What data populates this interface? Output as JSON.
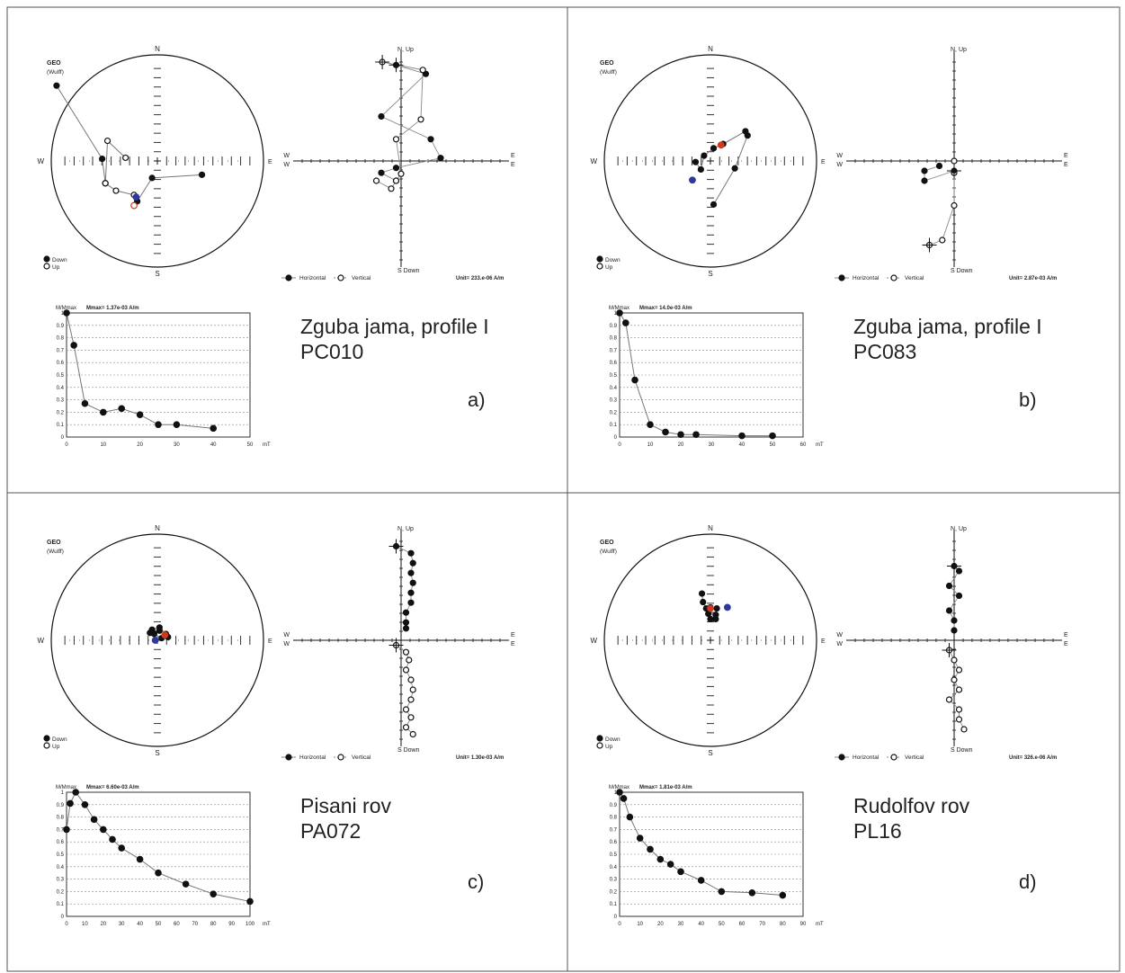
{
  "labels": {
    "geo": "GEO",
    "wulff": "(Wulff)",
    "north": "N",
    "south": "S",
    "west": "W",
    "east": "E",
    "down": "Down",
    "up": "Up",
    "n_up": "N, Up",
    "s_down": "S  Down",
    "horizontal": "Horizontal",
    "vertical": "Vertical",
    "m_mmax": "M/Mmax",
    "mT": "mT"
  },
  "chart_data": [
    {
      "id": "a",
      "panel_label": "a)",
      "caption_line1": "Zguba jama, profile I",
      "caption_line2": "PC010",
      "unit_text": "Unit=  233.e-06 A/m",
      "stereonet": {
        "type": "scatter",
        "projection": "wulff",
        "path": [
          [
            -0.95,
            0.71,
            1
          ],
          [
            -0.52,
            0.02,
            1
          ],
          [
            -0.49,
            -0.21,
            0
          ],
          [
            -0.39,
            -0.28,
            0
          ],
          [
            -0.22,
            -0.32,
            0
          ],
          [
            -0.19,
            -0.38,
            1
          ],
          [
            -0.05,
            -0.16,
            1
          ],
          [
            0.42,
            -0.13,
            1
          ]
        ],
        "open_branch": [
          [
            -0.49,
            -0.21,
            0
          ],
          [
            -0.47,
            0.19,
            0
          ],
          [
            -0.3,
            0.03,
            0
          ]
        ],
        "mean_blue": [
          -0.2,
          -0.34
        ],
        "mean_red": [
          -0.22,
          -0.42
        ]
      },
      "zijderveld": {
        "type": "scatter",
        "horizontal": [
          [
            -0.05,
            0.97
          ],
          [
            0.25,
            0.88
          ],
          [
            -0.2,
            0.45
          ],
          [
            0.3,
            0.22
          ],
          [
            0.4,
            0.03
          ],
          [
            -0.05,
            -0.07
          ],
          [
            -0.2,
            -0.12
          ],
          [
            -0.05,
            -0.2
          ]
        ],
        "vertical": [
          [
            -0.19,
            1.0
          ],
          [
            0.22,
            0.92
          ],
          [
            0.2,
            0.42
          ],
          [
            -0.05,
            0.22
          ],
          [
            0.0,
            -0.13
          ],
          [
            -0.05,
            -0.2
          ],
          [
            -0.1,
            -0.28
          ],
          [
            -0.25,
            -0.2
          ]
        ]
      },
      "demag": {
        "type": "line",
        "mmax_text": "Mmax= 1.37e-03  A/m",
        "xlim": [
          0,
          50
        ],
        "ylim": [
          0,
          1
        ],
        "x": [
          0,
          2,
          5,
          10,
          15,
          20,
          25,
          30,
          40
        ],
        "y": [
          1.0,
          0.74,
          0.27,
          0.2,
          0.23,
          0.18,
          0.1,
          0.1,
          0.07
        ]
      }
    },
    {
      "id": "b",
      "panel_label": "b)",
      "caption_line1": "Zguba jama, profile I",
      "caption_line2": "PC083",
      "unit_text": "Unit=  2.87e-03 A/m",
      "stereonet": {
        "type": "scatter",
        "projection": "wulff",
        "path": [
          [
            0.03,
            -0.41,
            1
          ],
          [
            0.23,
            -0.07,
            1
          ],
          [
            0.35,
            0.24,
            1
          ],
          [
            0.33,
            0.28,
            1
          ],
          [
            0.12,
            0.16,
            1
          ],
          [
            0.03,
            0.12,
            1
          ],
          [
            -0.06,
            0.05,
            1
          ],
          [
            -0.09,
            -0.08,
            1
          ],
          [
            -0.14,
            -0.01,
            1
          ]
        ],
        "open_branch": [],
        "mean_blue": [
          -0.17,
          -0.18
        ],
        "mean_red": [
          0.1,
          0.15
        ]
      },
      "zijderveld": {
        "type": "scatter",
        "horizontal": [
          [
            0.0,
            -0.1
          ],
          [
            -0.3,
            -0.2
          ],
          [
            -0.3,
            -0.1
          ],
          [
            -0.15,
            -0.05
          ]
        ],
        "vertical": [
          [
            -0.25,
            -0.85
          ],
          [
            -0.12,
            -0.8
          ],
          [
            0.0,
            -0.45
          ],
          [
            0.0,
            -0.12
          ],
          [
            0.0,
            0.0
          ]
        ]
      },
      "demag": {
        "type": "line",
        "mmax_text": "Mmax= 14.0e-03  A/m",
        "xlim": [
          0,
          60
        ],
        "ylim": [
          0,
          1
        ],
        "x": [
          0,
          2,
          5,
          10,
          15,
          20,
          25,
          40,
          50
        ],
        "y": [
          1.0,
          0.92,
          0.46,
          0.1,
          0.04,
          0.02,
          0.02,
          0.01,
          0.01
        ]
      }
    },
    {
      "id": "c",
      "panel_label": "c)",
      "caption_line1": "Pisani rov",
      "caption_line2": "PA072",
      "unit_text": "Unit=  1.30e-03 A/m",
      "stereonet": {
        "type": "scatter",
        "projection": "wulff",
        "path": [
          [
            -0.05,
            0.1,
            1
          ],
          [
            0.02,
            0.12,
            1
          ],
          [
            0.08,
            0.06,
            1
          ],
          [
            0.1,
            0.03,
            1
          ],
          [
            0.04,
            0.02,
            1
          ],
          [
            -0.03,
            0.06,
            1
          ],
          [
            0.02,
            0.09,
            1
          ],
          [
            -0.07,
            0.07,
            1
          ]
        ],
        "open_branch": [],
        "mean_blue": [
          -0.02,
          0.0
        ],
        "mean_red": [
          0.07,
          0.05
        ]
      },
      "zijderveld": {
        "type": "scatter",
        "horizontal": [
          [
            -0.05,
            0.95
          ],
          [
            0.1,
            0.88
          ],
          [
            0.12,
            0.78
          ],
          [
            0.1,
            0.68
          ],
          [
            0.12,
            0.58
          ],
          [
            0.1,
            0.48
          ],
          [
            0.1,
            0.38
          ],
          [
            0.05,
            0.28
          ],
          [
            0.05,
            0.18
          ],
          [
            0.05,
            0.12
          ]
        ],
        "vertical": [
          [
            -0.05,
            -0.05
          ],
          [
            0.05,
            -0.12
          ],
          [
            0.08,
            -0.2
          ],
          [
            0.05,
            -0.3
          ],
          [
            0.1,
            -0.4
          ],
          [
            0.12,
            -0.5
          ],
          [
            0.1,
            -0.6
          ],
          [
            0.05,
            -0.7
          ],
          [
            0.1,
            -0.78
          ],
          [
            0.05,
            -0.88
          ],
          [
            0.12,
            -0.95
          ]
        ]
      },
      "demag": {
        "type": "line",
        "mmax_text": "Mmax= 6.60e-03  A/m",
        "xlim": [
          0,
          100
        ],
        "ylim": [
          0,
          1
        ],
        "x": [
          0,
          2,
          5,
          10,
          15,
          20,
          25,
          30,
          40,
          50,
          65,
          80,
          100
        ],
        "y": [
          0.7,
          0.91,
          1.0,
          0.9,
          0.78,
          0.7,
          0.62,
          0.55,
          0.46,
          0.35,
          0.26,
          0.18,
          0.12
        ]
      }
    },
    {
      "id": "d",
      "panel_label": "d)",
      "caption_line1": "Rudolfov rov",
      "caption_line2": "PL16",
      "unit_text": "Unit=  326.e-06 A/m",
      "stereonet": {
        "type": "scatter",
        "projection": "wulff",
        "path": [
          [
            -0.08,
            0.44,
            1
          ],
          [
            -0.07,
            0.36,
            1
          ],
          [
            -0.04,
            0.3,
            1
          ],
          [
            0.0,
            0.31,
            1
          ],
          [
            0.06,
            0.3,
            1
          ],
          [
            0.05,
            0.24,
            1
          ],
          [
            -0.02,
            0.25,
            1
          ],
          [
            0.0,
            0.2,
            1
          ],
          [
            0.05,
            0.2,
            1
          ]
        ],
        "open_branch": [],
        "mean_blue": [
          0.16,
          0.31
        ],
        "mean_red": [
          0.0,
          0.3
        ]
      },
      "zijderveld": {
        "type": "scatter",
        "horizontal": [
          [
            0.0,
            0.75
          ],
          [
            0.05,
            0.7
          ],
          [
            -0.05,
            0.55
          ],
          [
            0.05,
            0.45
          ],
          [
            -0.05,
            0.3
          ],
          [
            0.0,
            0.2
          ],
          [
            0.0,
            0.1
          ]
        ],
        "vertical": [
          [
            -0.05,
            -0.1
          ],
          [
            0.0,
            -0.2
          ],
          [
            0.05,
            -0.3
          ],
          [
            0.0,
            -0.4
          ],
          [
            0.05,
            -0.5
          ],
          [
            -0.05,
            -0.6
          ],
          [
            0.05,
            -0.7
          ],
          [
            0.05,
            -0.8
          ],
          [
            0.1,
            -0.9
          ]
        ]
      },
      "demag": {
        "type": "line",
        "mmax_text": "Mmax= 1.81e-03  A/m",
        "xlim": [
          0,
          90
        ],
        "ylim": [
          0,
          1
        ],
        "x": [
          0,
          2,
          5,
          10,
          15,
          20,
          25,
          30,
          40,
          50,
          65,
          80
        ],
        "y": [
          1.0,
          0.95,
          0.8,
          0.63,
          0.54,
          0.46,
          0.42,
          0.36,
          0.29,
          0.2,
          0.19,
          0.17
        ]
      }
    }
  ]
}
